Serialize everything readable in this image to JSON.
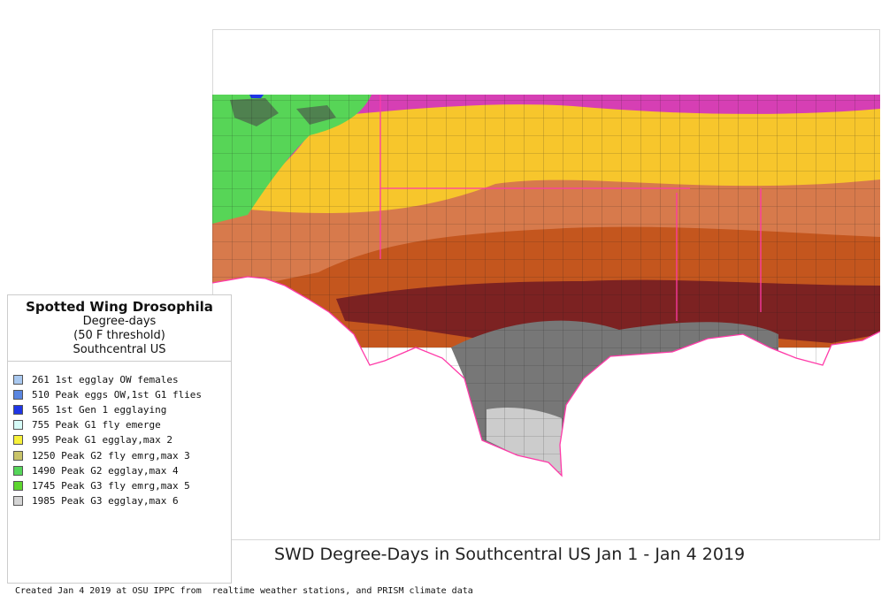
{
  "legend": {
    "title": "Spotted Wing Drosophila",
    "subtitle_1": "Degree-days",
    "subtitle_2": "(50 F threshold)",
    "subtitle_3": "Southcentral US",
    "items": [
      {
        "label": "261 1st egglay OW females",
        "color": "#a9c8ef"
      },
      {
        "label": "510 Peak eggs OW,1st G1 flies",
        "color": "#5a86e0"
      },
      {
        "label": "565 1st Gen 1 egglaying",
        "color": "#1f36e6"
      },
      {
        "label": "755 Peak G1 fly emerge",
        "color": "#d6fbf7"
      },
      {
        "label": "995 Peak G1 egglay,max 2",
        "color": "#f7f13a"
      },
      {
        "label": "1250 Peak G2 fly emrg,max 3",
        "color": "#c9c46a"
      },
      {
        "label": "1490 Peak G2 egglay,max 4",
        "color": "#55d55a"
      },
      {
        "label": "1745 Peak G3 fly emrg,max 5",
        "color": "#5ed62f"
      },
      {
        "label": "1985 Peak G3 egglay,max 6",
        "color": "#d4d4d4"
      }
    ]
  },
  "map": {
    "title": "SWD Degree-Days in Southcentral US Jan 1 - Jan 4 2019",
    "zones": [
      {
        "name": "far-north-mountains",
        "color": "#57d557"
      },
      {
        "name": "north-plains",
        "color": "#d63fb4"
      },
      {
        "name": "central-band",
        "color": "#f7c62c"
      },
      {
        "name": "mid-band",
        "color": "#d77a4c"
      },
      {
        "name": "south-central",
        "color": "#c4561e"
      },
      {
        "name": "warm-core",
        "color": "#7c2222"
      },
      {
        "name": "gulf-coast",
        "color": "#777777"
      },
      {
        "name": "deep-south-tip",
        "color": "#cccccc"
      }
    ],
    "state_line_color": "#ff3aa8",
    "county_line_color": "#1a1a1a"
  },
  "footer": {
    "note": "Created Jan 4 2019 at OSU IPPC from  realtime weather stations, and PRISM climate data"
  }
}
